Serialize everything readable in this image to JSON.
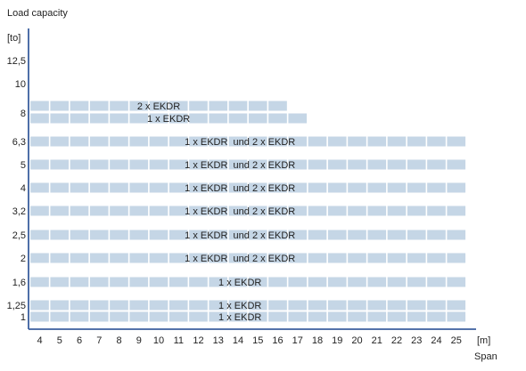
{
  "chart_data": {
    "type": "bar",
    "ylabel": "Load capacity",
    "yunit": "[to]",
    "xlabel": "Span",
    "xunit": "[m]",
    "x_ticks": [
      "4",
      "5",
      "6",
      "7",
      "8",
      "9",
      "10",
      "11",
      "12",
      "13",
      "14",
      "15",
      "16",
      "17",
      "18",
      "19",
      "20",
      "21",
      "22",
      "23",
      "24",
      "25"
    ],
    "y_ticks": [
      "12,5",
      "10",
      "8",
      "6,3",
      "5",
      "4",
      "3,2",
      "2,5",
      "2",
      "1,6",
      "1,25",
      "1"
    ],
    "bar_color": "#c5d6e6",
    "axis_color": "#3b5f9e",
    "rows": [
      {
        "capacity": "8",
        "span_from": 3.5,
        "span_to": 16.5,
        "label": "2 x EKDR"
      },
      {
        "capacity": "8",
        "span_from": 3.5,
        "span_to": 17.5,
        "label": "1 x EKDR"
      },
      {
        "capacity": "6,3",
        "span_from": 3.5,
        "span_to": 25.5,
        "label": "1 x EKDR  und 2 x EKDR"
      },
      {
        "capacity": "5",
        "span_from": 3.5,
        "span_to": 25.5,
        "label": "1 x EKDR  und 2 x EKDR"
      },
      {
        "capacity": "4",
        "span_from": 3.5,
        "span_to": 25.5,
        "label": "1 x EKDR  und 2 x EKDR"
      },
      {
        "capacity": "3,2",
        "span_from": 3.5,
        "span_to": 25.5,
        "label": "1 x EKDR  und 2 x EKDR"
      },
      {
        "capacity": "2,5",
        "span_from": 3.5,
        "span_to": 25.5,
        "label": "1 x EKDR  und 2 x EKDR"
      },
      {
        "capacity": "2",
        "span_from": 3.5,
        "span_to": 25.5,
        "label": "1 x EKDR  und 2 x EKDR"
      },
      {
        "capacity": "1,6",
        "span_from": 3.5,
        "span_to": 25.5,
        "label": "1 x EKDR"
      },
      {
        "capacity": "1,25",
        "span_from": 3.5,
        "span_to": 25.5,
        "label": "1 x EKDR"
      },
      {
        "capacity": "1",
        "span_from": 3.5,
        "span_to": 25.5,
        "label": "1 x EKDR"
      }
    ]
  }
}
